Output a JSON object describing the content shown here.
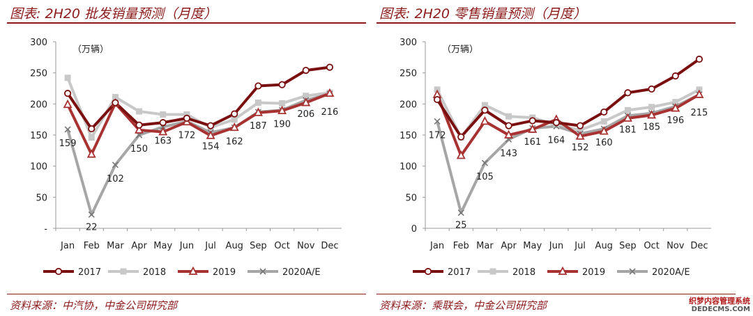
{
  "panels": [
    {
      "title": "图表: 2H20 批发销量预测（月度）",
      "source": "资料来源：中汽协，中金公司研究部"
    },
    {
      "title": "图表: 2H20 零售销量预测（月度）",
      "source": "资料来源：乘联会，中金公司研究部"
    }
  ],
  "watermark": {
    "text": "织梦内容管理系统",
    "url": "DEDECMS.COM"
  },
  "colors": {
    "2017": "#7a0f0f",
    "2018": "#c8c8c8",
    "2019": "#a83232",
    "2020A/E": "#a6a6a6"
  },
  "chart_data": [
    {
      "type": "line",
      "unit_label": "（万辆）",
      "categories": [
        "Jan",
        "Feb",
        "Mar",
        "Apr",
        "May",
        "Jun",
        "Jul",
        "Aug",
        "Sep",
        "Oct",
        "Nov",
        "Dec"
      ],
      "ylim": [
        0,
        300
      ],
      "yticks": [
        0,
        50,
        100,
        150,
        200,
        250,
        300
      ],
      "ytick_labels": [
        "-",
        "50",
        "100",
        "150",
        "200",
        "250",
        "300"
      ],
      "legend_position": "bottom",
      "series": [
        {
          "name": "2017",
          "marker": "circle",
          "values": [
            217,
            160,
            202,
            166,
            170,
            177,
            165,
            184,
            229,
            231,
            254,
            259
          ]
        },
        {
          "name": "2018",
          "marker": "square",
          "values": [
            242,
            146,
            211,
            188,
            183,
            183,
            162,
            175,
            202,
            201,
            213,
            218
          ]
        },
        {
          "name": "2019",
          "marker": "triangle",
          "values": [
            199,
            119,
            201,
            158,
            155,
            171,
            149,
            162,
            186,
            189,
            202,
            217
          ]
        },
        {
          "name": "2020A/E",
          "marker": "x",
          "values": [
            159,
            22,
            102,
            150,
            163,
            172,
            154,
            162,
            187,
            190,
            206,
            216
          ]
        }
      ],
      "data_labels": {
        "series": "2020A/E",
        "values": [
          "159",
          "22",
          "102",
          "150",
          "163",
          "172",
          "154",
          "162",
          "187",
          "190",
          "206",
          "216"
        ]
      }
    },
    {
      "type": "line",
      "unit_label": "（万辆）",
      "categories": [
        "Jan",
        "Feb",
        "Mar",
        "Apr",
        "May",
        "Jun",
        "Jul",
        "Aug",
        "Sep",
        "Oct",
        "Nov",
        "Dec"
      ],
      "ylim": [
        0,
        300
      ],
      "yticks": [
        0,
        50,
        100,
        150,
        200,
        250,
        300
      ],
      "ytick_labels": [
        "0",
        "50",
        "100",
        "150",
        "200",
        "250",
        "300"
      ],
      "legend_position": "bottom",
      "series": [
        {
          "name": "2017",
          "marker": "circle",
          "values": [
            207,
            147,
            190,
            165,
            173,
            170,
            165,
            187,
            218,
            224,
            245,
            272
          ]
        },
        {
          "name": "2018",
          "marker": "square",
          "values": [
            223,
            146,
            198,
            180,
            178,
            166,
            158,
            172,
            190,
            195,
            203,
            223
          ]
        },
        {
          "name": "2019",
          "marker": "triangle",
          "values": [
            215,
            117,
            172,
            150,
            159,
            175,
            148,
            156,
            177,
            182,
            193,
            215
          ]
        },
        {
          "name": "2020A/E",
          "marker": "x",
          "values": [
            172,
            25,
            105,
            143,
            161,
            164,
            152,
            160,
            181,
            185,
            196,
            215
          ]
        }
      ],
      "data_labels": {
        "series": "2020A/E",
        "values": [
          "172",
          "25",
          "105",
          "143",
          "161",
          "164",
          "152",
          "160",
          "181",
          "185",
          "196",
          "215"
        ]
      }
    }
  ]
}
